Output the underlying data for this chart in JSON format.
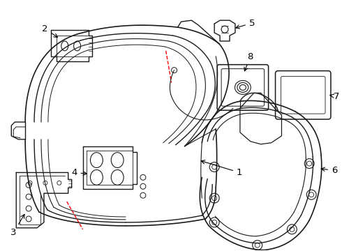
{
  "bg_color": "#ffffff",
  "line_color": "#1a1a1a",
  "red_dash_color": "#ff0000",
  "label_color": "#000000",
  "fig_width": 4.9,
  "fig_height": 3.6,
  "dpi": 100
}
